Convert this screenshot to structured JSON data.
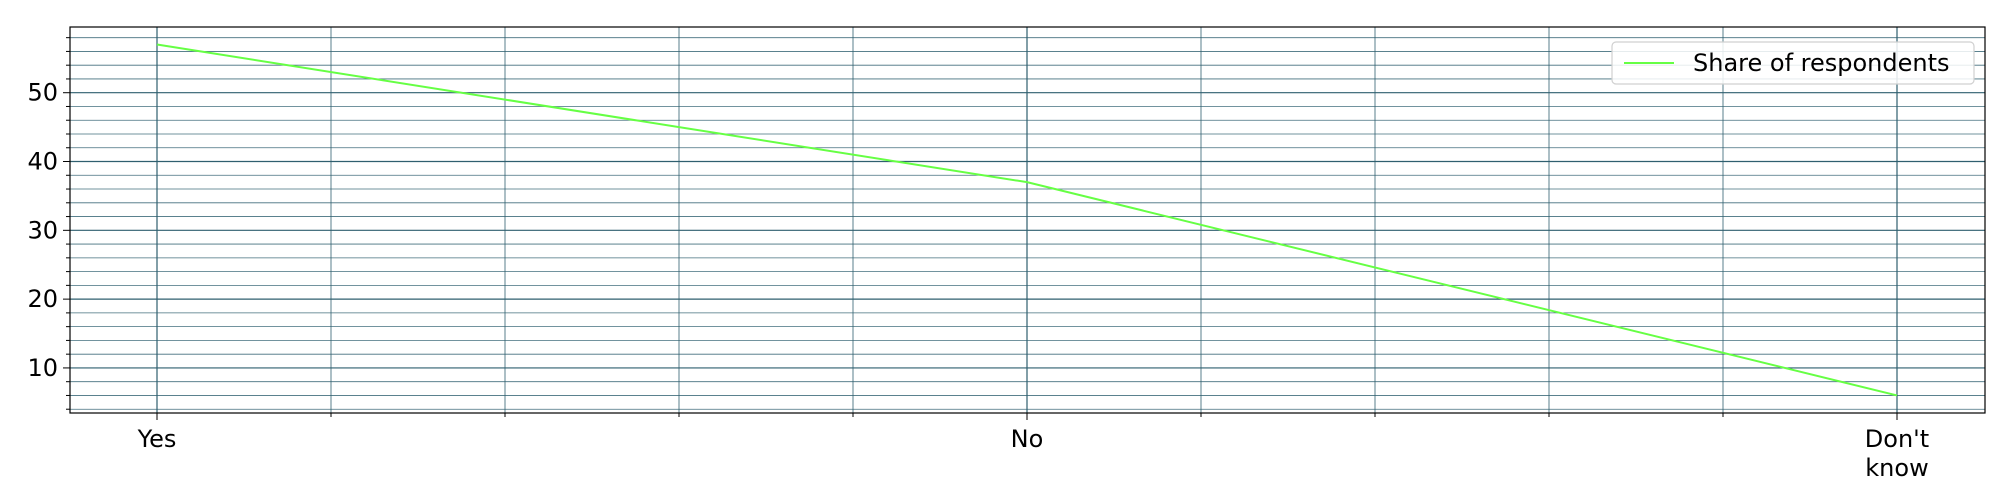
{
  "chart_data": {
    "type": "line",
    "categories": [
      "Yes",
      "No",
      "Don't know"
    ],
    "category_label_lines": [
      [
        "Yes"
      ],
      [
        "No"
      ],
      [
        "Don't",
        "know"
      ]
    ],
    "series": [
      {
        "name": "Share of respondents",
        "values": [
          57,
          37,
          6
        ],
        "color": "#66ff44"
      }
    ],
    "xlabel": "",
    "ylabel": "",
    "ylim": [
      3.45,
      59.55
    ],
    "yticks": [
      10,
      20,
      30,
      40,
      50
    ],
    "ytick_labels": [
      "10",
      "20",
      "30",
      "40",
      "50"
    ],
    "y_minor_step": 2,
    "x_minor_divisions": 5,
    "grid": true,
    "grid_color": "#2f5f6f",
    "legend_position": "top-right"
  }
}
